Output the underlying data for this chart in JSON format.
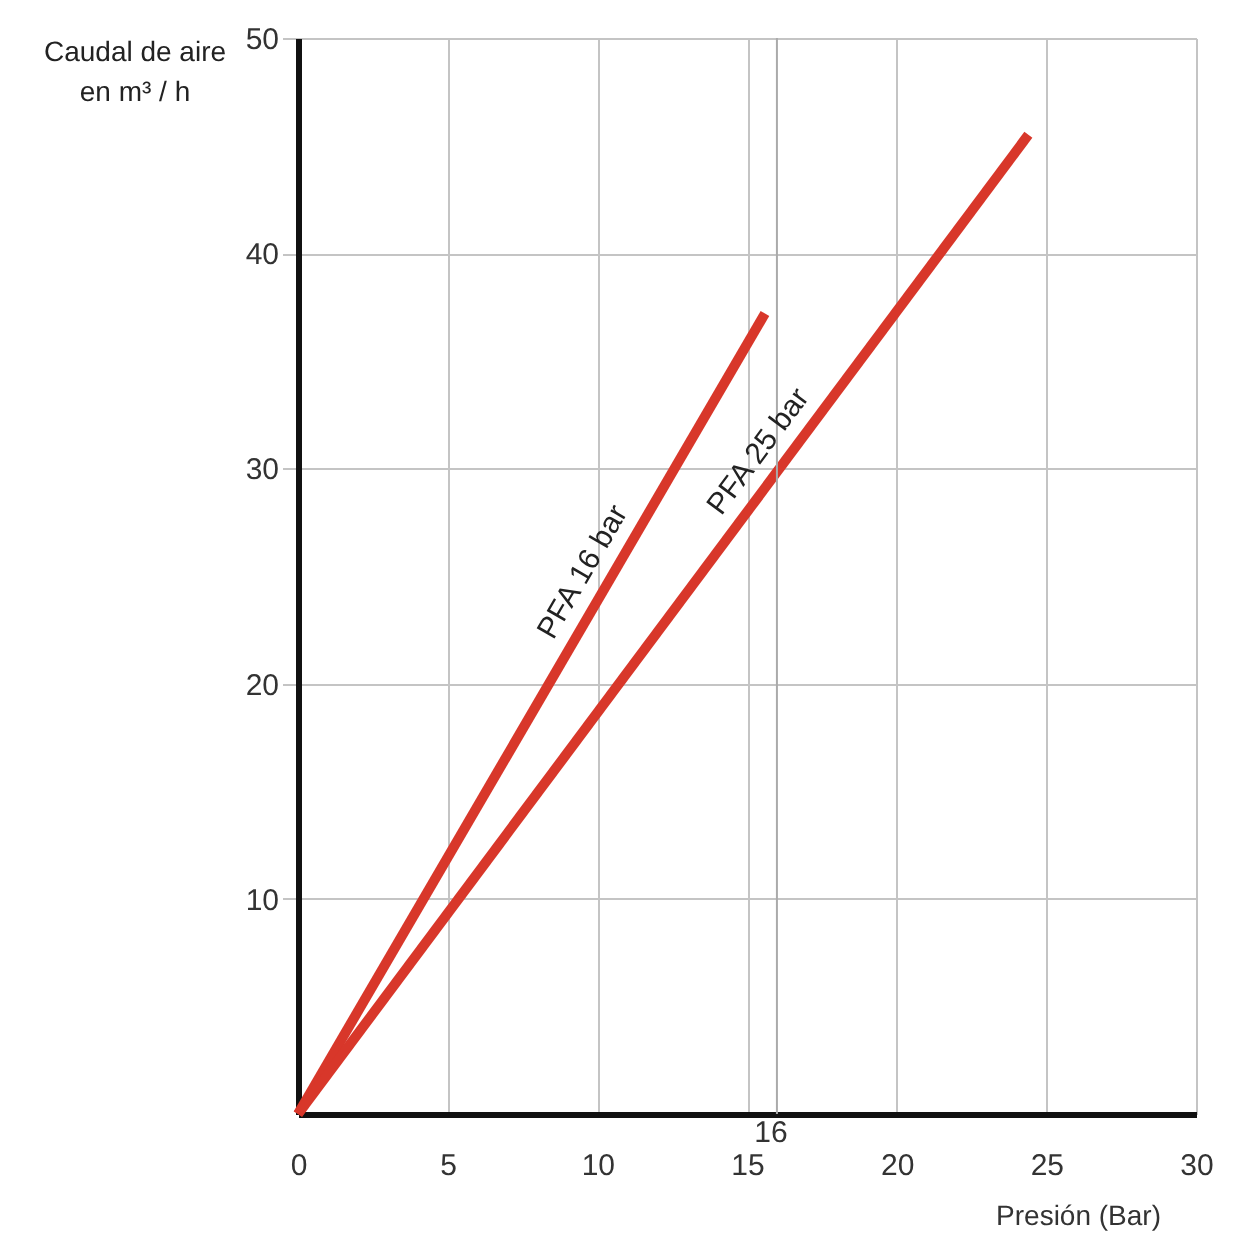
{
  "chart_data": {
    "type": "line",
    "xlabel": "Presión (Bar)",
    "ylabel": "Caudal de aire\nen m³ / h",
    "series": [
      {
        "name": "PFA 16 bar",
        "color": "#d8372a",
        "x": [
          0,
          15.6
        ],
        "values": [
          0,
          37.2
        ]
      },
      {
        "name": "PFA 25 bar",
        "color": "#d8372a",
        "x": [
          0,
          24.4
        ],
        "values": [
          0,
          45.5
        ]
      }
    ],
    "xlim": [
      0,
      30
    ],
    "xticks": [
      0,
      5,
      10,
      15,
      20,
      25,
      30
    ],
    "ylim": [
      0,
      50
    ],
    "yticks": [
      10,
      20,
      30,
      40,
      50
    ],
    "ref_lines": [
      {
        "axis": "x",
        "value": 16,
        "label": "16"
      }
    ],
    "grid": true,
    "marker": "none",
    "line_style": "solid"
  }
}
